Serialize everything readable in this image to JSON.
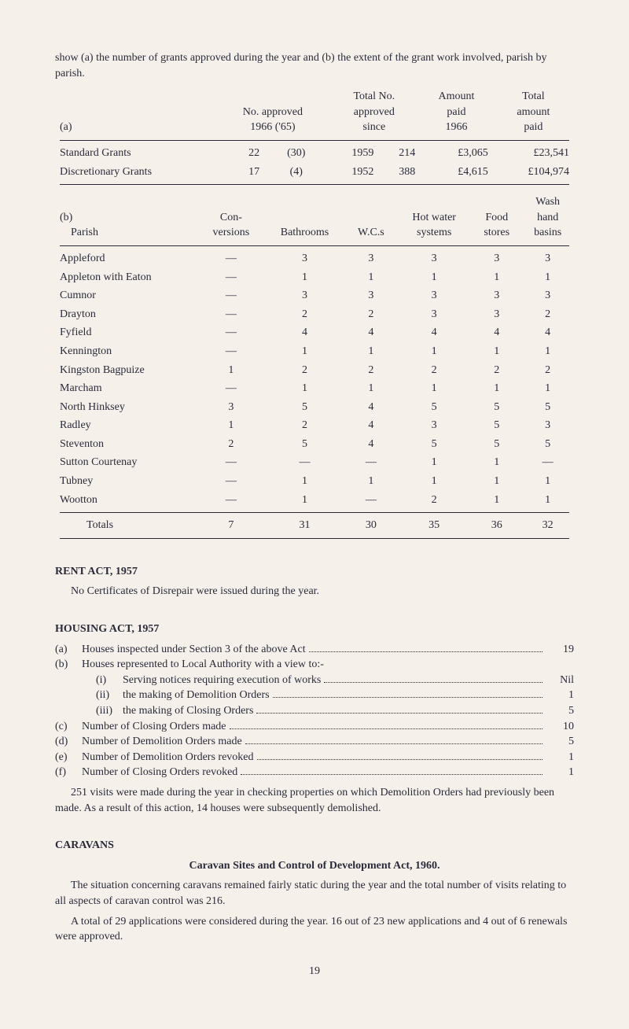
{
  "intro": "show (a) the number of grants approved during the year and (b) the extent of the grant work involved, parish by parish.",
  "table_a": {
    "header_a": "(a)",
    "col_no_approved": "No. approved",
    "col_years": "1966 ('65)",
    "col_total_no1": "Total No.",
    "col_total_no2": "approved",
    "col_total_no3": "since",
    "col_amount1": "Amount",
    "col_amount2": "paid",
    "col_amount3": "1966",
    "col_total1": "Total",
    "col_total2": "amount",
    "col_total3": "paid",
    "rows": [
      {
        "label": "Standard Grants",
        "c1": "22",
        "c2": "(30)",
        "c3": "1959",
        "c4": "214",
        "c5": "£3,065",
        "c6": "£23,541"
      },
      {
        "label": "Discretionary Grants",
        "c1": "17",
        "c2": "(4)",
        "c3": "1952",
        "c4": "388",
        "c5": "£4,615",
        "c6": "£104,974"
      }
    ]
  },
  "table_b": {
    "header_b": "(b)",
    "col_parish": "Parish",
    "col_con1": "Con-",
    "col_con2": "versions",
    "col_bath": "Bathrooms",
    "col_wcs": "W.C.s",
    "col_hot1": "Hot water",
    "col_hot2": "systems",
    "col_food1": "Food",
    "col_food2": "stores",
    "col_wash1": "Wash",
    "col_wash2": "hand",
    "col_wash3": "basins",
    "rows": [
      {
        "p": "Appleford",
        "v": [
          "—",
          "3",
          "3",
          "3",
          "3",
          "3"
        ]
      },
      {
        "p": "Appleton with Eaton",
        "v": [
          "—",
          "1",
          "1",
          "1",
          "1",
          "1"
        ]
      },
      {
        "p": "Cumnor",
        "v": [
          "—",
          "3",
          "3",
          "3",
          "3",
          "3"
        ]
      },
      {
        "p": "Drayton",
        "v": [
          "—",
          "2",
          "2",
          "3",
          "3",
          "2"
        ]
      },
      {
        "p": "Fyfield",
        "v": [
          "—",
          "4",
          "4",
          "4",
          "4",
          "4"
        ]
      },
      {
        "p": "Kennington",
        "v": [
          "—",
          "1",
          "1",
          "1",
          "1",
          "1"
        ]
      },
      {
        "p": "Kingston Bagpuize",
        "v": [
          "1",
          "2",
          "2",
          "2",
          "2",
          "2"
        ]
      },
      {
        "p": "Marcham",
        "v": [
          "—",
          "1",
          "1",
          "1",
          "1",
          "1"
        ]
      },
      {
        "p": "North Hinksey",
        "v": [
          "3",
          "5",
          "4",
          "5",
          "5",
          "5"
        ]
      },
      {
        "p": "Radley",
        "v": [
          "1",
          "2",
          "4",
          "3",
          "5",
          "3"
        ]
      },
      {
        "p": "Steventon",
        "v": [
          "2",
          "5",
          "4",
          "5",
          "5",
          "5"
        ]
      },
      {
        "p": "Sutton Courtenay",
        "v": [
          "—",
          "—",
          "—",
          "1",
          "1",
          "—"
        ]
      },
      {
        "p": "Tubney",
        "v": [
          "—",
          "1",
          "1",
          "1",
          "1",
          "1"
        ]
      },
      {
        "p": "Wootton",
        "v": [
          "—",
          "1",
          "—",
          "2",
          "1",
          "1"
        ]
      }
    ],
    "totals_label": "Totals",
    "totals": [
      "7",
      "31",
      "30",
      "35",
      "36",
      "32"
    ]
  },
  "rent_act": {
    "title": "RENT ACT, 1957",
    "text": "No Certificates of Disrepair were issued during the year."
  },
  "housing_act": {
    "title": "HOUSING ACT, 1957",
    "items": [
      {
        "m": "(a)",
        "t": "Houses inspected under Section 3 of the above Act",
        "v": "19"
      },
      {
        "m": "(b)",
        "t": "Houses represented to Local Authority with a view to:-",
        "v": ""
      }
    ],
    "subitems": [
      {
        "m": "(i)",
        "t": "Serving notices requiring execution of works",
        "v": "Nil"
      },
      {
        "m": "(ii)",
        "t": "the making of Demolition Orders",
        "v": "1"
      },
      {
        "m": "(iii)",
        "t": "the making of Closing Orders",
        "v": "5"
      }
    ],
    "items2": [
      {
        "m": "(c)",
        "t": "Number of Closing Orders made",
        "v": "10"
      },
      {
        "m": "(d)",
        "t": "Number of Demolition Orders made",
        "v": "5"
      },
      {
        "m": "(e)",
        "t": "Number of Demolition Orders revoked",
        "v": "1"
      },
      {
        "m": "(f)",
        "t": "Number of Closing Orders revoked",
        "v": "1"
      }
    ],
    "paragraph": "251 visits were made during the year in checking properties on which Demolition Orders had previously been made. As a result of this action, 14 houses were subsequently demolished."
  },
  "caravans": {
    "title": "CARAVANS",
    "subtitle": "Caravan Sites and Control of Development Act, 1960.",
    "p1": "The situation concerning caravans remained fairly static during the year and the total number of visits relating to all aspects of caravan control was 216.",
    "p2": "A total of 29 applications were considered during the year. 16 out of 23 new applications and 4 out of 6 renewals were approved."
  },
  "page_number": "19"
}
